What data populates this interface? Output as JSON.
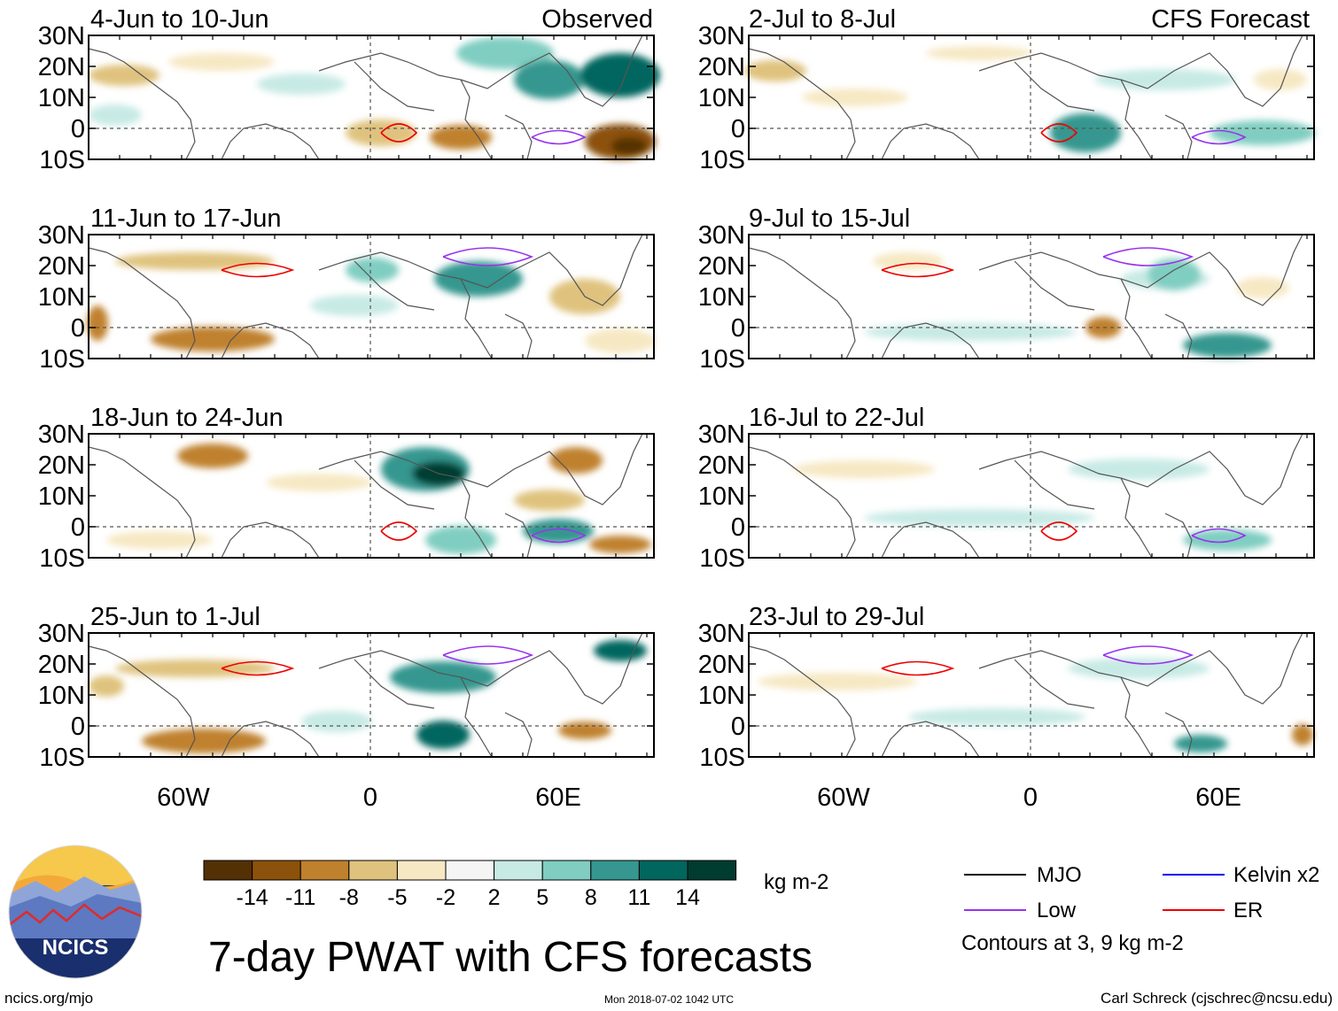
{
  "title": "7-day PWAT with CFS forecasts",
  "observed_label": "Observed",
  "forecast_label": "CFS Forecast",
  "colors": {
    "brown_dark": "#4a2c0a",
    "tan_light": "#f5e3b8",
    "white": "#f7f7f7",
    "teal_light": "#c7eae4",
    "teal_dark": "#01332b",
    "mjo": "#000000",
    "low": "#9933ee",
    "kelvin": "#0000ee",
    "er": "#ee0000"
  },
  "lat_labels": [
    "30N",
    "20N",
    "10N",
    "0",
    "10S"
  ],
  "lon_labels": [
    "60W",
    "0",
    "60E"
  ],
  "panels_observed": [
    {
      "date": "4-Jun to 10-Jun"
    },
    {
      "date": "11-Jun to 17-Jun"
    },
    {
      "date": "18-Jun to 24-Jun"
    },
    {
      "date": "25-Jun to 1-Jul"
    }
  ],
  "panels_forecast": [
    {
      "date": "2-Jul to 8-Jul"
    },
    {
      "date": "9-Jul to 15-Jul"
    },
    {
      "date": "16-Jul to 22-Jul"
    },
    {
      "date": "23-Jul to 29-Jul"
    }
  ],
  "colorbar": {
    "ticks": [
      "-14",
      "-11",
      "-8",
      "-5",
      "-2",
      "2",
      "5",
      "8",
      "11",
      "14"
    ],
    "colors": [
      "#543005",
      "#8c510a",
      "#bf812d",
      "#dfc27d",
      "#f6e8c3",
      "#f5f5f5",
      "#c7eae5",
      "#80cdc1",
      "#35978f",
      "#01665e",
      "#003c30"
    ],
    "units": "kg m-2"
  },
  "legend": {
    "items": [
      {
        "label": "MJO",
        "color": "#000000"
      },
      {
        "label": "Kelvin x2",
        "color": "#0000ee"
      },
      {
        "label": "Low",
        "color": "#9933ee"
      },
      {
        "label": "ER",
        "color": "#ee0000"
      }
    ],
    "note": "Contours at 3, 9 kg m-2"
  },
  "logo_text": "NCICS",
  "footer": {
    "left": "ncics.org/mjo",
    "center": "Mon 2018-07-02 1042 UTC",
    "right": "Carl Schreck (cjschrec@ncsu.edu)"
  }
}
